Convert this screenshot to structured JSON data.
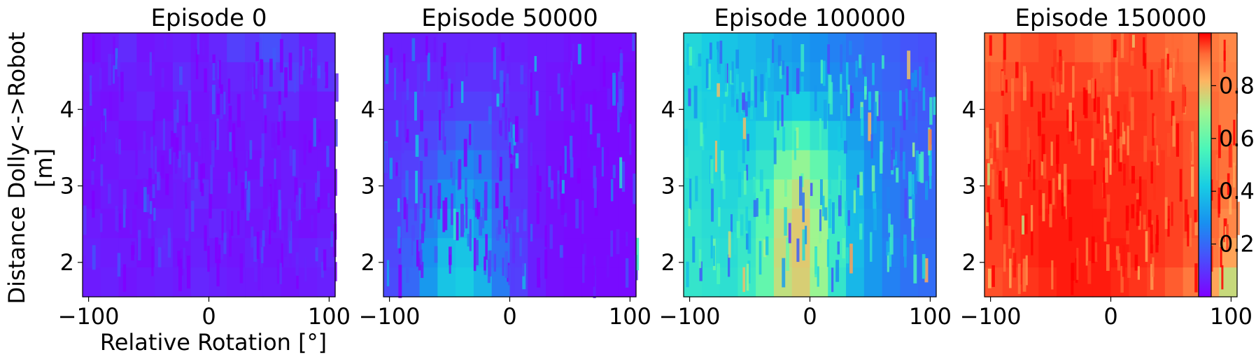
{
  "chart_data": {
    "type": "heatmap",
    "colormap": "rainbow",
    "xlabel": "Relative Rotation [°]",
    "ylabel_lines": [
      "Distance Dolly<->Robot",
      "[m]"
    ],
    "xlim": [
      -105,
      105
    ],
    "ylim": [
      1.55,
      5.0
    ],
    "xticks": [
      -100,
      0,
      100
    ],
    "xtick_labels": [
      "−100",
      "0",
      "100"
    ],
    "yticks": [
      2,
      3,
      4
    ],
    "yticks_labels": [
      "2",
      "3",
      "4"
    ],
    "colorbar": {
      "range": [
        0.0,
        1.0
      ],
      "ticks": [
        0.2,
        0.4,
        0.6,
        0.8
      ],
      "tick_labels": [
        "0.2",
        "0.4",
        "0.6",
        "0.8"
      ]
    },
    "panels": [
      {
        "title": "Episode 0",
        "grid": [
          [
            0.03,
            0.05,
            0.08,
            0.04,
            0.05,
            0.06,
            0.04,
            0.07,
            0.12,
            0.1,
            0.15,
            0.1,
            0.05,
            0.09
          ],
          [
            0.05,
            0.04,
            0.06,
            0.05,
            0.04,
            0.08,
            0.05,
            0.06,
            0.07,
            0.06,
            0.1,
            0.12,
            0.05,
            0.1
          ],
          [
            0.04,
            0.03,
            0.05,
            0.07,
            0.03,
            0.05,
            0.04,
            0.05,
            0.06,
            0.05,
            0.06,
            0.08,
            0.04,
            0.05
          ],
          [
            0.03,
            0.05,
            0.03,
            0.04,
            0.05,
            0.04,
            0.04,
            0.05,
            0.04,
            0.05,
            0.05,
            0.04,
            0.03,
            0.04
          ],
          [
            0.04,
            0.04,
            0.05,
            0.06,
            0.03,
            0.06,
            0.04,
            0.04,
            0.04,
            0.03,
            0.04,
            0.05,
            0.04,
            0.04
          ],
          [
            0.03,
            0.05,
            0.04,
            0.03,
            0.04,
            0.05,
            0.08,
            0.04,
            0.05,
            0.05,
            0.03,
            0.05,
            0.05,
            0.03
          ],
          [
            0.05,
            0.04,
            0.03,
            0.04,
            0.06,
            0.05,
            0.05,
            0.07,
            0.05,
            0.04,
            0.05,
            0.04,
            0.03,
            0.05
          ],
          [
            0.06,
            0.05,
            0.05,
            0.03,
            0.07,
            0.04,
            0.06,
            0.05,
            0.04,
            0.06,
            0.04,
            0.05,
            0.06,
            0.07
          ],
          [
            0.05,
            0.06,
            0.04,
            0.05,
            0.06,
            0.05,
            0.07,
            0.06,
            0.05,
            0.05,
            0.05,
            0.04,
            0.05,
            0.06
          ]
        ]
      },
      {
        "title": "Episode 50000",
        "grid": [
          [
            0.06,
            0.06,
            0.06,
            0.07,
            0.07,
            0.07,
            0.07,
            0.06,
            0.05,
            0.05,
            0.04,
            0.03,
            0.03,
            0.03
          ],
          [
            0.07,
            0.07,
            0.08,
            0.08,
            0.09,
            0.09,
            0.08,
            0.07,
            0.05,
            0.04,
            0.03,
            0.03,
            0.02,
            0.02
          ],
          [
            0.08,
            0.09,
            0.1,
            0.11,
            0.12,
            0.12,
            0.1,
            0.08,
            0.05,
            0.04,
            0.03,
            0.02,
            0.02,
            0.02
          ],
          [
            0.09,
            0.1,
            0.13,
            0.16,
            0.19,
            0.17,
            0.12,
            0.08,
            0.05,
            0.03,
            0.02,
            0.02,
            0.02,
            0.02
          ],
          [
            0.1,
            0.12,
            0.16,
            0.22,
            0.26,
            0.23,
            0.15,
            0.08,
            0.05,
            0.03,
            0.02,
            0.02,
            0.02,
            0.02
          ],
          [
            0.11,
            0.14,
            0.2,
            0.28,
            0.32,
            0.28,
            0.18,
            0.09,
            0.05,
            0.03,
            0.02,
            0.02,
            0.02,
            0.02
          ],
          [
            0.12,
            0.16,
            0.24,
            0.33,
            0.36,
            0.31,
            0.2,
            0.1,
            0.05,
            0.03,
            0.02,
            0.02,
            0.02,
            0.02
          ],
          [
            0.13,
            0.18,
            0.28,
            0.38,
            0.4,
            0.34,
            0.22,
            0.11,
            0.06,
            0.03,
            0.02,
            0.02,
            0.02,
            0.02
          ],
          [
            0.14,
            0.2,
            0.3,
            0.4,
            0.42,
            0.36,
            0.24,
            0.12,
            0.06,
            0.03,
            0.02,
            0.02,
            0.02,
            0.02
          ]
        ]
      },
      {
        "title": "Episode 100000",
        "grid": [
          [
            0.45,
            0.42,
            0.4,
            0.38,
            0.35,
            0.32,
            0.3,
            0.28,
            0.25,
            0.22,
            0.2,
            0.18,
            0.16,
            0.15
          ],
          [
            0.44,
            0.42,
            0.4,
            0.38,
            0.36,
            0.34,
            0.32,
            0.3,
            0.27,
            0.24,
            0.21,
            0.19,
            0.17,
            0.16
          ],
          [
            0.45,
            0.43,
            0.41,
            0.4,
            0.38,
            0.4,
            0.42,
            0.38,
            0.32,
            0.27,
            0.23,
            0.2,
            0.18,
            0.17
          ],
          [
            0.46,
            0.44,
            0.42,
            0.42,
            0.45,
            0.52,
            0.55,
            0.5,
            0.4,
            0.32,
            0.26,
            0.22,
            0.19,
            0.18
          ],
          [
            0.47,
            0.45,
            0.43,
            0.45,
            0.5,
            0.62,
            0.68,
            0.6,
            0.46,
            0.35,
            0.28,
            0.23,
            0.2,
            0.19
          ],
          [
            0.48,
            0.46,
            0.45,
            0.48,
            0.55,
            0.7,
            0.74,
            0.66,
            0.5,
            0.37,
            0.29,
            0.24,
            0.21,
            0.2
          ],
          [
            0.49,
            0.47,
            0.46,
            0.5,
            0.58,
            0.74,
            0.78,
            0.7,
            0.52,
            0.38,
            0.3,
            0.24,
            0.21,
            0.2
          ],
          [
            0.5,
            0.48,
            0.47,
            0.51,
            0.6,
            0.75,
            0.78,
            0.7,
            0.52,
            0.38,
            0.3,
            0.25,
            0.22,
            0.21
          ],
          [
            0.5,
            0.49,
            0.48,
            0.52,
            0.6,
            0.74,
            0.77,
            0.69,
            0.5,
            0.37,
            0.3,
            0.25,
            0.22,
            0.21
          ]
        ]
      },
      {
        "title": "Episode 150000",
        "grid": [
          [
            0.92,
            0.93,
            0.94,
            0.95,
            0.94,
            0.93,
            0.92,
            0.94,
            0.95,
            0.93,
            0.92,
            0.91,
            0.9,
            0.88
          ],
          [
            0.93,
            0.94,
            0.95,
            0.95,
            0.96,
            0.95,
            0.94,
            0.95,
            0.95,
            0.94,
            0.93,
            0.92,
            0.91,
            0.89
          ],
          [
            0.94,
            0.95,
            0.96,
            0.96,
            0.96,
            0.96,
            0.95,
            0.96,
            0.96,
            0.95,
            0.94,
            0.93,
            0.92,
            0.9
          ],
          [
            0.94,
            0.95,
            0.96,
            0.97,
            0.97,
            0.97,
            0.96,
            0.96,
            0.96,
            0.95,
            0.95,
            0.94,
            0.92,
            0.9
          ],
          [
            0.95,
            0.96,
            0.96,
            0.97,
            0.97,
            0.97,
            0.97,
            0.97,
            0.96,
            0.96,
            0.95,
            0.94,
            0.93,
            0.91
          ],
          [
            0.95,
            0.96,
            0.97,
            0.97,
            0.98,
            0.98,
            0.97,
            0.97,
            0.97,
            0.96,
            0.95,
            0.94,
            0.93,
            0.9
          ],
          [
            0.95,
            0.96,
            0.97,
            0.98,
            0.98,
            0.98,
            0.98,
            0.97,
            0.97,
            0.96,
            0.95,
            0.94,
            0.92,
            0.88
          ],
          [
            0.95,
            0.96,
            0.97,
            0.98,
            0.98,
            0.98,
            0.98,
            0.98,
            0.97,
            0.96,
            0.95,
            0.93,
            0.9,
            0.84
          ],
          [
            0.94,
            0.95,
            0.96,
            0.97,
            0.98,
            0.98,
            0.98,
            0.97,
            0.96,
            0.95,
            0.93,
            0.9,
            0.84,
            0.75
          ]
        ]
      }
    ]
  }
}
